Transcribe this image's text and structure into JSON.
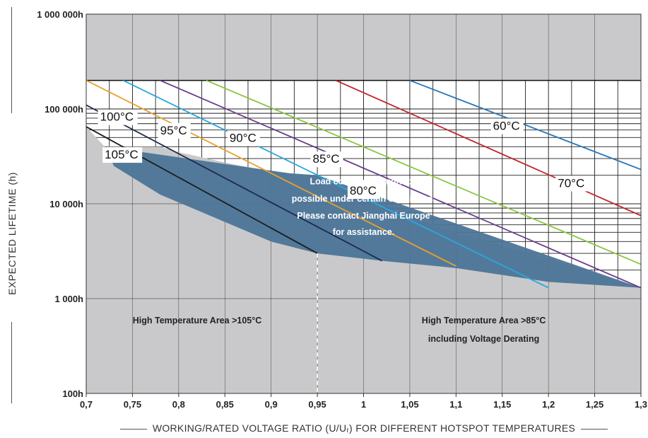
{
  "chart_data": {
    "type": "line",
    "xlabel": "WORKING/RATED VOLTAGE RATIO (U/Uᵣ) FOR DIFFERENT HOTSPOT TEMPERATURES",
    "ylabel": "EXPECTED LIFETIME (h)",
    "x_ticks": [
      "0,7",
      "0,75",
      "0,8",
      "0,85",
      "0,9",
      "0,95",
      "1",
      "1,05",
      "1,1",
      "1,15",
      "1,2",
      "1,25",
      "1,3"
    ],
    "y_scale": "log",
    "ylim": [
      100,
      1000000
    ],
    "xlim": [
      0.7,
      1.3
    ],
    "y_ticks": [
      {
        "value": 100,
        "label": "100h"
      },
      {
        "value": 1000,
        "label": "1 000h"
      },
      {
        "value": 10000,
        "label": "10 000h"
      },
      {
        "value": 100000,
        "label": "100 000h"
      },
      {
        "value": 1000000,
        "label": "1 000 000h"
      }
    ],
    "grid": true,
    "upper_limit_hours": 200000,
    "series": [
      {
        "name": "60°C",
        "color": "#2a78b8",
        "x": [
          1.05,
          1.3
        ],
        "y": [
          200000,
          23000
        ]
      },
      {
        "name": "70°C",
        "color": "#c0272d",
        "x": [
          0.97,
          1.3
        ],
        "y": [
          200000,
          7500
        ]
      },
      {
        "name": "80°C",
        "color": "#8cc63f",
        "x": [
          0.83,
          1.3
        ],
        "y": [
          200000,
          2300
        ]
      },
      {
        "name": "85°C",
        "color": "#6a3d8e",
        "x": [
          0.78,
          1.3
        ],
        "y": [
          200000,
          1300
        ]
      },
      {
        "name": "90°C",
        "color": "#2ba6de",
        "x": [
          0.74,
          1.2
        ],
        "y": [
          200000,
          1300
        ]
      },
      {
        "name": "95°C",
        "color": "#e8a030",
        "x": [
          0.7,
          1.1
        ],
        "y": [
          200000,
          2200
        ]
      },
      {
        "name": "100°C",
        "color": "#1e2a4a",
        "x": [
          0.7,
          1.02
        ],
        "y": [
          110000,
          2500
        ]
      },
      {
        "name": "105°C",
        "color": "#1c1c1c",
        "x": [
          0.7,
          0.95
        ],
        "y": [
          65000,
          3000
        ]
      }
    ],
    "shaded_region": {
      "color": "#4c7597",
      "x": [
        0.7,
        0.72,
        0.78,
        0.8,
        0.86,
        0.9,
        0.92,
        0.95,
        1.02,
        1.1,
        1.2,
        1.3
      ],
      "y": [
        65000,
        40000,
        40000,
        35000,
        26000,
        22000,
        21000,
        20000,
        9000,
        5000,
        2600,
        1300
      ]
    },
    "annotations": [
      {
        "text": "Load conditions might be",
        "x": 1.0,
        "y": 16000
      },
      {
        "text": "possible under certain conditions.",
        "x": 1.0,
        "y": 10500
      },
      {
        "text": "Please contact Jianghai Europe",
        "x": 1.0,
        "y": 7000
      },
      {
        "text": "for assistance.",
        "x": 1.0,
        "y": 4700
      },
      {
        "text": "High Temperature Area >105°C",
        "x": 0.82,
        "y": 550
      },
      {
        "text": "High Temperature Area >85°C",
        "x": 1.13,
        "y": 550
      },
      {
        "text": "including Voltage Derating",
        "x": 1.13,
        "y": 350
      }
    ],
    "reference_x": 0.95
  },
  "colors": {
    "background_gray": "#c9c9cb",
    "shaded_blue": "#4c7597",
    "grid": "#222222"
  }
}
